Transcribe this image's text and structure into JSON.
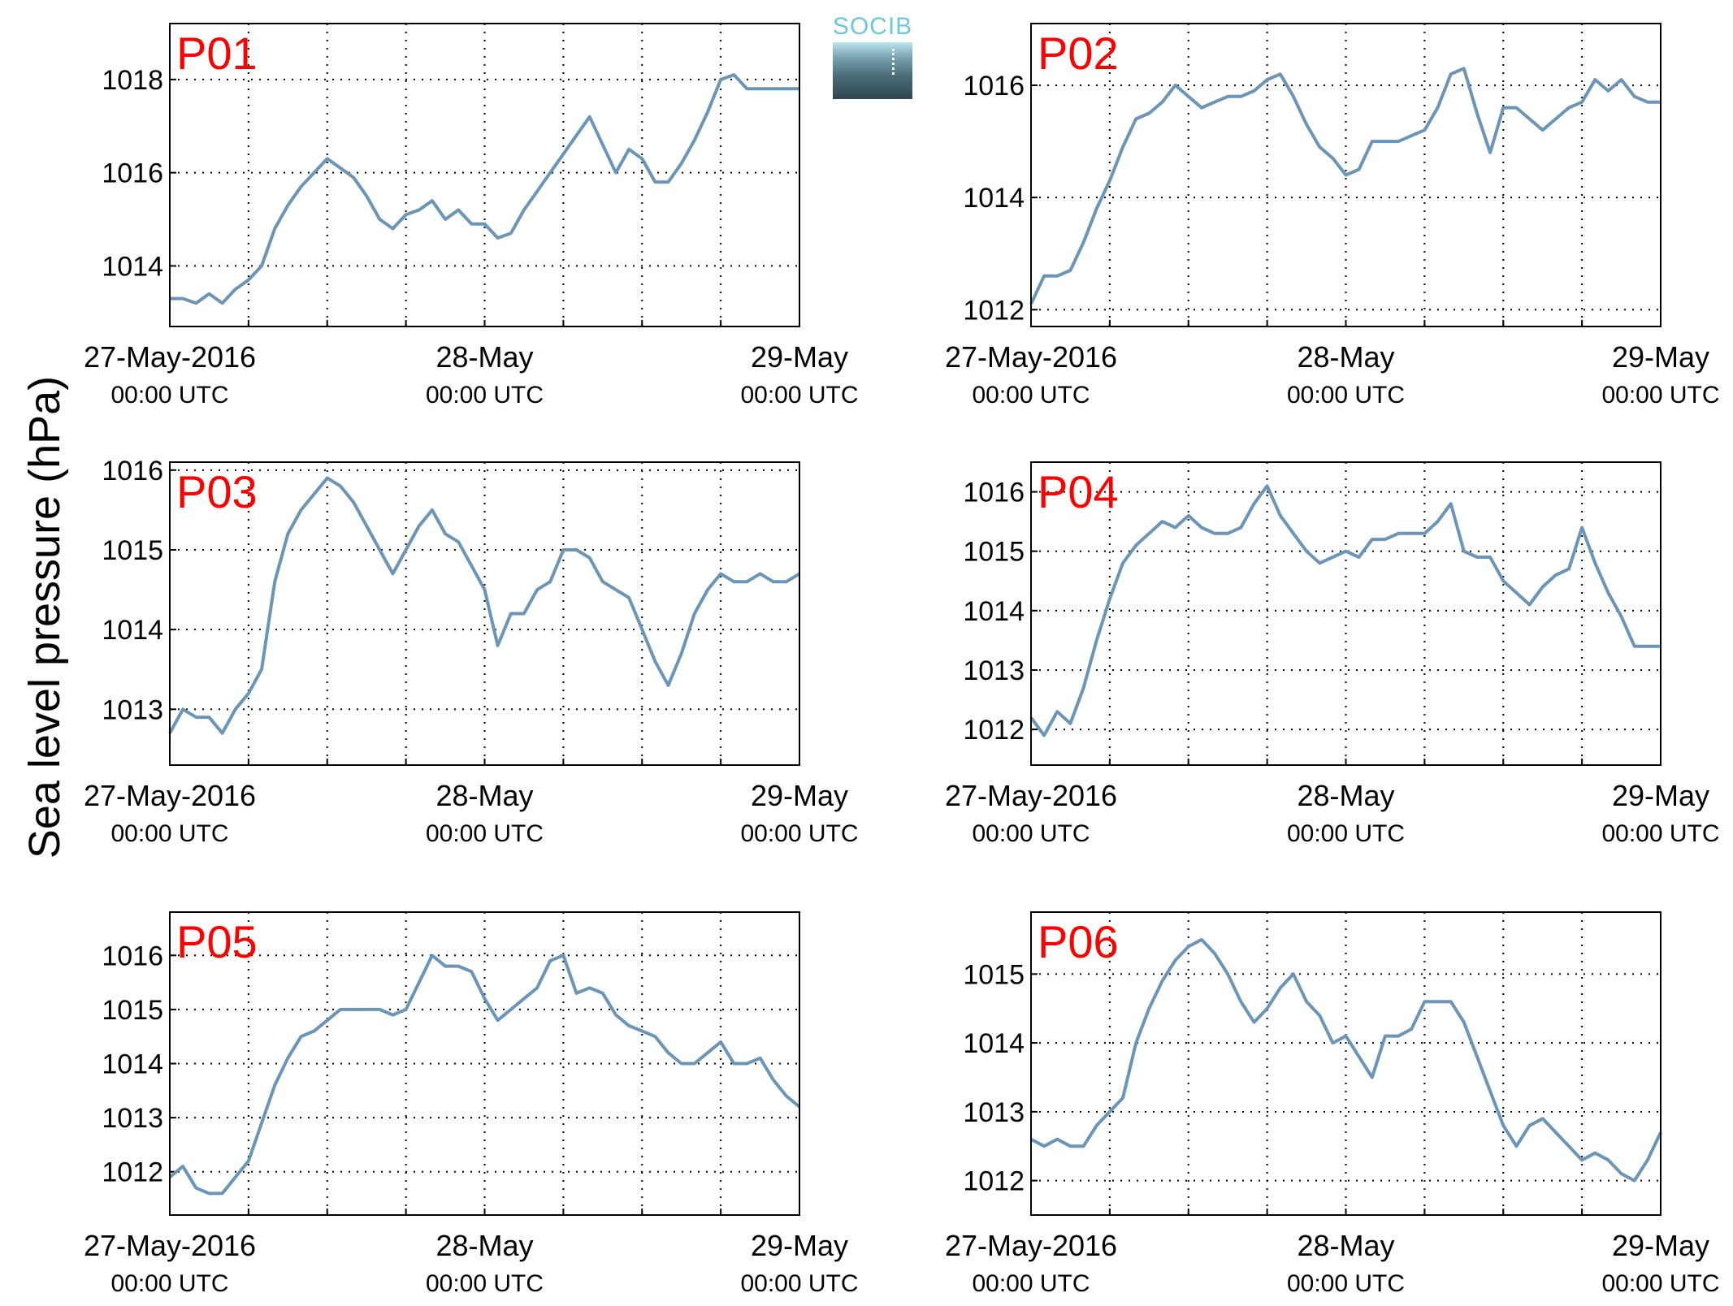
{
  "y_axis_label": "Sea level pressure (hPa)",
  "logo_text": "SOCIB",
  "colors": {
    "series": "#6a95b8",
    "panel_label": "#ff0000",
    "grid": "#000000"
  },
  "chart_data": [
    {
      "type": "line",
      "label": "P01",
      "x_ticks": [
        {
          "top": "27-May-2016",
          "bottom": "00:00 UTC"
        },
        {
          "top": "28-May",
          "bottom": "00:00 UTC"
        },
        {
          "top": "29-May",
          "bottom": "00:00 UTC"
        }
      ],
      "xlim": [
        0,
        48
      ],
      "ylim": [
        1012.7,
        1019.2
      ],
      "yticks": [
        1014,
        1016,
        1018
      ],
      "series": [
        {
          "x": [
            0,
            1,
            2,
            3,
            4,
            5,
            6,
            7,
            8,
            9,
            10,
            11,
            12,
            13,
            14,
            15,
            16,
            17,
            18,
            19,
            20,
            21,
            22,
            23,
            24,
            25,
            26,
            27,
            28,
            29,
            30,
            31,
            32,
            33,
            34,
            35,
            36,
            37,
            38,
            39,
            40,
            41,
            42,
            43,
            44,
            45,
            46,
            47,
            48
          ],
          "y": [
            1013.3,
            1013.3,
            1013.2,
            1013.4,
            1013.2,
            1013.5,
            1013.7,
            1014.0,
            1014.8,
            1015.3,
            1015.7,
            1016.0,
            1016.3,
            1016.1,
            1015.9,
            1015.5,
            1015.0,
            1014.8,
            1015.1,
            1015.2,
            1015.4,
            1015.0,
            1015.2,
            1014.9,
            1014.9,
            1014.6,
            1014.7,
            1015.2,
            1015.6,
            1016.0,
            1016.4,
            1016.8,
            1017.2,
            1016.6,
            1016.0,
            1016.5,
            1016.3,
            1015.8,
            1015.8,
            1016.2,
            1016.7,
            1017.3,
            1018.0,
            1018.1,
            1017.8,
            1017.8,
            1017.8,
            1017.8,
            1017.8
          ]
        }
      ]
    },
    {
      "type": "line",
      "label": "P02",
      "x_ticks": [
        {
          "top": "27-May-2016",
          "bottom": "00:00 UTC"
        },
        {
          "top": "28-May",
          "bottom": "00:00 UTC"
        },
        {
          "top": "29-May",
          "bottom": "00:00 UTC"
        }
      ],
      "xlim": [
        0,
        48
      ],
      "ylim": [
        1011.7,
        1017.1
      ],
      "yticks": [
        1012,
        1014,
        1016
      ],
      "series": [
        {
          "x": [
            0,
            1,
            2,
            3,
            4,
            5,
            6,
            7,
            8,
            9,
            10,
            11,
            12,
            13,
            14,
            15,
            16,
            17,
            18,
            19,
            20,
            21,
            22,
            23,
            24,
            25,
            26,
            27,
            28,
            29,
            30,
            31,
            32,
            33,
            34,
            35,
            36,
            37,
            38,
            39,
            40,
            41,
            42,
            43,
            44,
            45,
            46,
            47,
            48
          ],
          "y": [
            1012.1,
            1012.6,
            1012.6,
            1012.7,
            1013.2,
            1013.8,
            1014.3,
            1014.9,
            1015.4,
            1015.5,
            1015.7,
            1016.0,
            1015.8,
            1015.6,
            1015.7,
            1015.8,
            1015.8,
            1015.9,
            1016.1,
            1016.2,
            1015.8,
            1015.3,
            1014.9,
            1014.7,
            1014.4,
            1014.5,
            1015.0,
            1015.0,
            1015.0,
            1015.1,
            1015.2,
            1015.6,
            1016.2,
            1016.3,
            1015.5,
            1014.8,
            1015.6,
            1015.6,
            1015.4,
            1015.2,
            1015.4,
            1015.6,
            1015.7,
            1016.1,
            1015.9,
            1016.1,
            1015.8,
            1015.7,
            1015.7
          ]
        }
      ]
    },
    {
      "type": "line",
      "label": "P03",
      "x_ticks": [
        {
          "top": "27-May-2016",
          "bottom": "00:00 UTC"
        },
        {
          "top": "28-May",
          "bottom": "00:00 UTC"
        },
        {
          "top": "29-May",
          "bottom": "00:00 UTC"
        }
      ],
      "xlim": [
        0,
        48
      ],
      "ylim": [
        1012.3,
        1016.1
      ],
      "yticks": [
        1013,
        1014,
        1015,
        1016
      ],
      "series": [
        {
          "x": [
            0,
            1,
            2,
            3,
            4,
            5,
            6,
            7,
            8,
            9,
            10,
            11,
            12,
            13,
            14,
            15,
            16,
            17,
            18,
            19,
            20,
            21,
            22,
            23,
            24,
            25,
            26,
            27,
            28,
            29,
            30,
            31,
            32,
            33,
            34,
            35,
            36,
            37,
            38,
            39,
            40,
            41,
            42,
            43,
            44,
            45,
            46,
            47,
            48
          ],
          "y": [
            1012.7,
            1013.0,
            1012.9,
            1012.9,
            1012.7,
            1013.0,
            1013.2,
            1013.5,
            1014.6,
            1015.2,
            1015.5,
            1015.7,
            1015.9,
            1015.8,
            1015.6,
            1015.3,
            1015.0,
            1014.7,
            1015.0,
            1015.3,
            1015.5,
            1015.2,
            1015.1,
            1014.8,
            1014.5,
            1013.8,
            1014.2,
            1014.2,
            1014.5,
            1014.6,
            1015.0,
            1015.0,
            1014.9,
            1014.6,
            1014.5,
            1014.4,
            1014.0,
            1013.6,
            1013.3,
            1013.7,
            1014.2,
            1014.5,
            1014.7,
            1014.6,
            1014.6,
            1014.7,
            1014.6,
            1014.6,
            1014.7
          ]
        }
      ]
    },
    {
      "type": "line",
      "label": "P04",
      "x_ticks": [
        {
          "top": "27-May-2016",
          "bottom": "00:00 UTC"
        },
        {
          "top": "28-May",
          "bottom": "00:00 UTC"
        },
        {
          "top": "29-May",
          "bottom": "00:00 UTC"
        }
      ],
      "xlim": [
        0,
        48
      ],
      "ylim": [
        1011.4,
        1016.5
      ],
      "yticks": [
        1012,
        1013,
        1014,
        1015,
        1016
      ],
      "series": [
        {
          "x": [
            0,
            1,
            2,
            3,
            4,
            5,
            6,
            7,
            8,
            9,
            10,
            11,
            12,
            13,
            14,
            15,
            16,
            17,
            18,
            19,
            20,
            21,
            22,
            23,
            24,
            25,
            26,
            27,
            28,
            29,
            30,
            31,
            32,
            33,
            34,
            35,
            36,
            37,
            38,
            39,
            40,
            41,
            42,
            43,
            44,
            45,
            46,
            47,
            48
          ],
          "y": [
            1012.2,
            1011.9,
            1012.3,
            1012.1,
            1012.7,
            1013.5,
            1014.2,
            1014.8,
            1015.1,
            1015.3,
            1015.5,
            1015.4,
            1015.6,
            1015.4,
            1015.3,
            1015.3,
            1015.4,
            1015.8,
            1016.1,
            1015.6,
            1015.3,
            1015.0,
            1014.8,
            1014.9,
            1015.0,
            1014.9,
            1015.2,
            1015.2,
            1015.3,
            1015.3,
            1015.3,
            1015.5,
            1015.8,
            1015.0,
            1014.9,
            1014.9,
            1014.5,
            1014.3,
            1014.1,
            1014.4,
            1014.6,
            1014.7,
            1015.4,
            1014.8,
            1014.3,
            1013.9,
            1013.4,
            1013.4,
            1013.4
          ]
        }
      ]
    },
    {
      "type": "line",
      "label": "P05",
      "x_ticks": [
        {
          "top": "27-May-2016",
          "bottom": "00:00 UTC"
        },
        {
          "top": "28-May",
          "bottom": "00:00 UTC"
        },
        {
          "top": "29-May",
          "bottom": "00:00 UTC"
        }
      ],
      "xlim": [
        0,
        48
      ],
      "ylim": [
        1011.2,
        1016.8
      ],
      "yticks": [
        1012,
        1013,
        1014,
        1015,
        1016
      ],
      "series": [
        {
          "x": [
            0,
            1,
            2,
            3,
            4,
            5,
            6,
            7,
            8,
            9,
            10,
            11,
            12,
            13,
            14,
            15,
            16,
            17,
            18,
            19,
            20,
            21,
            22,
            23,
            24,
            25,
            26,
            27,
            28,
            29,
            30,
            31,
            32,
            33,
            34,
            35,
            36,
            37,
            38,
            39,
            40,
            41,
            42,
            43,
            44,
            45,
            46,
            47,
            48
          ],
          "y": [
            1011.9,
            1012.1,
            1011.7,
            1011.6,
            1011.6,
            1011.9,
            1012.2,
            1012.9,
            1013.6,
            1014.1,
            1014.5,
            1014.6,
            1014.8,
            1015.0,
            1015.0,
            1015.0,
            1015.0,
            1014.9,
            1015.0,
            1015.5,
            1016.0,
            1015.8,
            1015.8,
            1015.7,
            1015.2,
            1014.8,
            1015.0,
            1015.2,
            1015.4,
            1015.9,
            1016.0,
            1015.3,
            1015.4,
            1015.3,
            1014.9,
            1014.7,
            1014.6,
            1014.5,
            1014.2,
            1014.0,
            1014.0,
            1014.2,
            1014.4,
            1014.0,
            1014.0,
            1014.1,
            1013.7,
            1013.4,
            1013.2
          ]
        }
      ]
    },
    {
      "type": "line",
      "label": "P06",
      "x_ticks": [
        {
          "top": "27-May-2016",
          "bottom": "00:00 UTC"
        },
        {
          "top": "28-May",
          "bottom": "00:00 UTC"
        },
        {
          "top": "29-May",
          "bottom": "00:00 UTC"
        }
      ],
      "xlim": [
        0,
        48
      ],
      "ylim": [
        1011.5,
        1015.9
      ],
      "yticks": [
        1012,
        1013,
        1014,
        1015
      ],
      "series": [
        {
          "x": [
            0,
            1,
            2,
            3,
            4,
            5,
            6,
            7,
            8,
            9,
            10,
            11,
            12,
            13,
            14,
            15,
            16,
            17,
            18,
            19,
            20,
            21,
            22,
            23,
            24,
            25,
            26,
            27,
            28,
            29,
            30,
            31,
            32,
            33,
            34,
            35,
            36,
            37,
            38,
            39,
            40,
            41,
            42,
            43,
            44,
            45,
            46,
            47,
            48
          ],
          "y": [
            1012.6,
            1012.5,
            1012.6,
            1012.5,
            1012.5,
            1012.8,
            1013.0,
            1013.2,
            1014.0,
            1014.5,
            1014.9,
            1015.2,
            1015.4,
            1015.5,
            1015.3,
            1015.0,
            1014.6,
            1014.3,
            1014.5,
            1014.8,
            1015.0,
            1014.6,
            1014.4,
            1014.0,
            1014.1,
            1013.8,
            1013.5,
            1014.1,
            1014.1,
            1014.2,
            1014.6,
            1014.6,
            1014.6,
            1014.3,
            1013.8,
            1013.3,
            1012.8,
            1012.5,
            1012.8,
            1012.9,
            1012.7,
            1012.5,
            1012.3,
            1012.4,
            1012.3,
            1012.1,
            1012.0,
            1012.3,
            1012.7
          ]
        }
      ]
    }
  ]
}
